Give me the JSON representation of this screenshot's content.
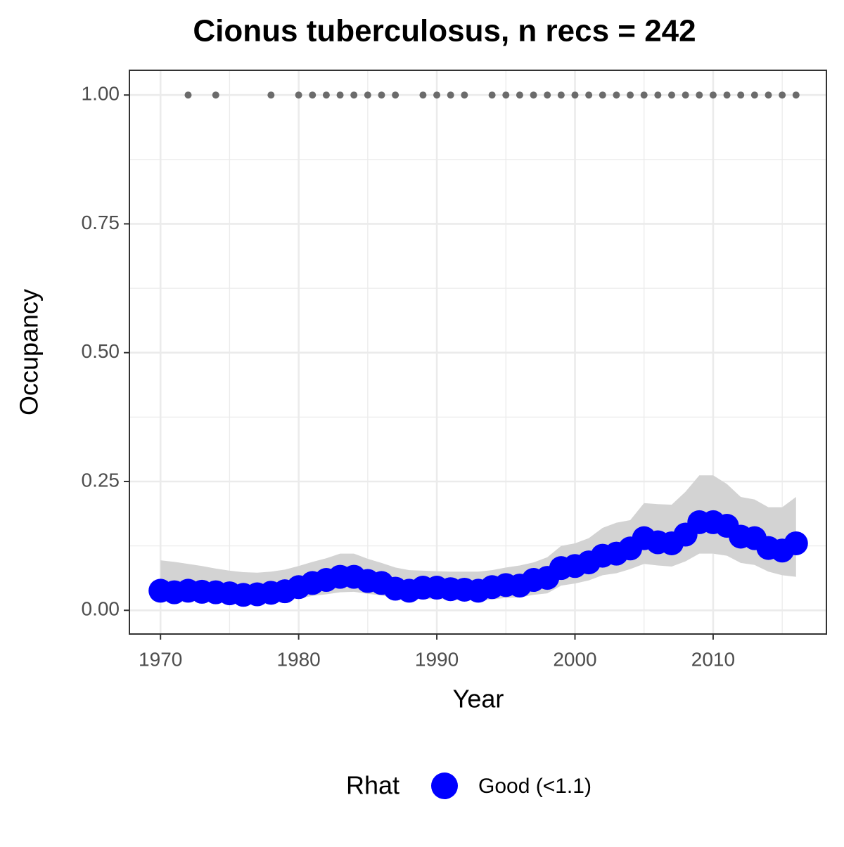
{
  "chart_data": {
    "type": "line",
    "title": "Cionus tuberculosus, n recs = 242",
    "x_label": "Year",
    "y_label": "Occupancy",
    "x": [
      1970,
      1971,
      1972,
      1973,
      1974,
      1975,
      1976,
      1977,
      1978,
      1979,
      1980,
      1981,
      1982,
      1983,
      1984,
      1985,
      1986,
      1987,
      1988,
      1989,
      1990,
      1991,
      1992,
      1993,
      1994,
      1995,
      1996,
      1997,
      1998,
      1999,
      2000,
      2001,
      2002,
      2003,
      2004,
      2005,
      2006,
      2007,
      2008,
      2009,
      2010,
      2011,
      2012,
      2013,
      2014,
      2015,
      2016
    ],
    "series": [
      {
        "name": "Good (<1.1)",
        "color": "#0000ff",
        "values": [
          0.038,
          0.035,
          0.038,
          0.036,
          0.035,
          0.033,
          0.03,
          0.031,
          0.034,
          0.037,
          0.045,
          0.053,
          0.059,
          0.065,
          0.065,
          0.057,
          0.053,
          0.042,
          0.038,
          0.044,
          0.044,
          0.041,
          0.04,
          0.038,
          0.045,
          0.049,
          0.048,
          0.059,
          0.063,
          0.082,
          0.086,
          0.093,
          0.106,
          0.11,
          0.12,
          0.14,
          0.132,
          0.13,
          0.147,
          0.171,
          0.171,
          0.164,
          0.143,
          0.14,
          0.121,
          0.116,
          0.13
        ]
      }
    ],
    "ribbon": {
      "color": "#d3d3d3",
      "upper": [
        0.097,
        0.094,
        0.09,
        0.086,
        0.081,
        0.077,
        0.074,
        0.073,
        0.075,
        0.079,
        0.086,
        0.094,
        0.101,
        0.11,
        0.11,
        0.1,
        0.092,
        0.083,
        0.078,
        0.077,
        0.076,
        0.075,
        0.075,
        0.075,
        0.078,
        0.083,
        0.087,
        0.093,
        0.103,
        0.125,
        0.13,
        0.14,
        0.16,
        0.17,
        0.175,
        0.208,
        0.206,
        0.205,
        0.23,
        0.262,
        0.262,
        0.245,
        0.22,
        0.215,
        0.2,
        0.2,
        0.22
      ],
      "lower": [
        0.017,
        0.018,
        0.019,
        0.019,
        0.018,
        0.017,
        0.016,
        0.016,
        0.017,
        0.019,
        0.023,
        0.028,
        0.031,
        0.035,
        0.036,
        0.032,
        0.029,
        0.023,
        0.021,
        0.022,
        0.022,
        0.021,
        0.02,
        0.019,
        0.021,
        0.024,
        0.025,
        0.03,
        0.033,
        0.048,
        0.052,
        0.058,
        0.068,
        0.072,
        0.08,
        0.09,
        0.087,
        0.085,
        0.095,
        0.11,
        0.11,
        0.106,
        0.092,
        0.088,
        0.075,
        0.068,
        0.065
      ]
    },
    "records": {
      "color": "#6b6b6b",
      "x": [
        1972,
        1974,
        1978,
        1980,
        1981,
        1982,
        1983,
        1984,
        1985,
        1986,
        1987,
        1989,
        1990,
        1991,
        1992,
        1994,
        1995,
        1996,
        1997,
        1998,
        1999,
        2000,
        2001,
        2002,
        2003,
        2004,
        2005,
        2006,
        2007,
        2008,
        2009,
        2010,
        2011,
        2012,
        2013,
        2014,
        2015,
        2016
      ],
      "y": [
        1,
        1,
        1,
        1,
        1,
        1,
        1,
        1,
        1,
        1,
        1,
        1,
        1,
        1,
        1,
        1,
        1,
        1,
        1,
        1,
        1,
        1,
        1,
        1,
        1,
        1,
        1,
        1,
        1,
        1,
        1,
        1,
        1,
        1,
        1,
        1,
        1,
        1
      ]
    },
    "xlim": [
      1967.75,
      2018.2
    ],
    "ylim": [
      -0.046,
      1.048
    ],
    "xticks": [
      1970,
      1980,
      1990,
      2000,
      2010
    ],
    "yticks": [
      {
        "value": 0,
        "label": "0.00"
      },
      {
        "value": 0.25,
        "label": "0.25"
      },
      {
        "value": 0.5,
        "label": "0.50"
      },
      {
        "value": 0.75,
        "label": "0.75"
      },
      {
        "value": 1,
        "label": "1.00"
      }
    ],
    "x_minor_grid": [
      1975,
      1985,
      1995,
      2005,
      2015
    ],
    "y_minor_grid": [
      0.125,
      0.375,
      0.625,
      0.875
    ],
    "grid": true,
    "legend_title": "Rhat",
    "legend_position": "bottom"
  }
}
